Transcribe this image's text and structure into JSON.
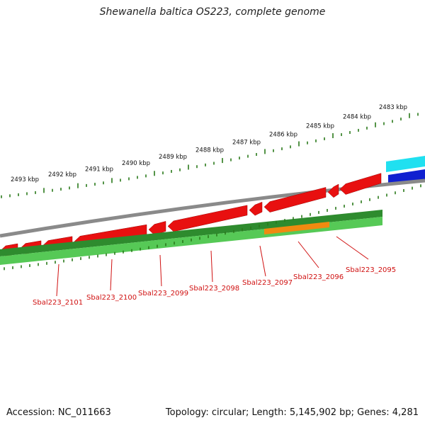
{
  "title": "Shewanella baltica OS223, complete genome",
  "accession_text": "Accession: NC_011663",
  "topology_text": "Topology: circular; Length: 5,145,902 bp; Genes: 4,281",
  "scale_labels": [
    "2493 kbp",
    "2492 kbp",
    "2491 kbp",
    "2490 kbp",
    "2489 kbp",
    "2488 kbp",
    "2487 kbp",
    "2486 kbp",
    "2485 kbp",
    "2484 kbp",
    "2483 kbp"
  ],
  "gene_labels": [
    "Sbal223_2101",
    "Sbal223_2100",
    "Sbal223_2099",
    "Sbal223_2098",
    "Sbal223_2097",
    "Sbal223_2096",
    "Sbal223_2095"
  ],
  "colors": {
    "cds_forward": "#e81010",
    "cds_reverse_dark": "#2e8b2e",
    "cds_reverse_light": "#56c956",
    "gene_highlight": "#f08a10",
    "rna_cyan": "#20e0f0",
    "rna_blue": "#1020d0",
    "backbone": "#8a8a8a",
    "tick": "#2a7a1a",
    "label": "#d01010"
  }
}
